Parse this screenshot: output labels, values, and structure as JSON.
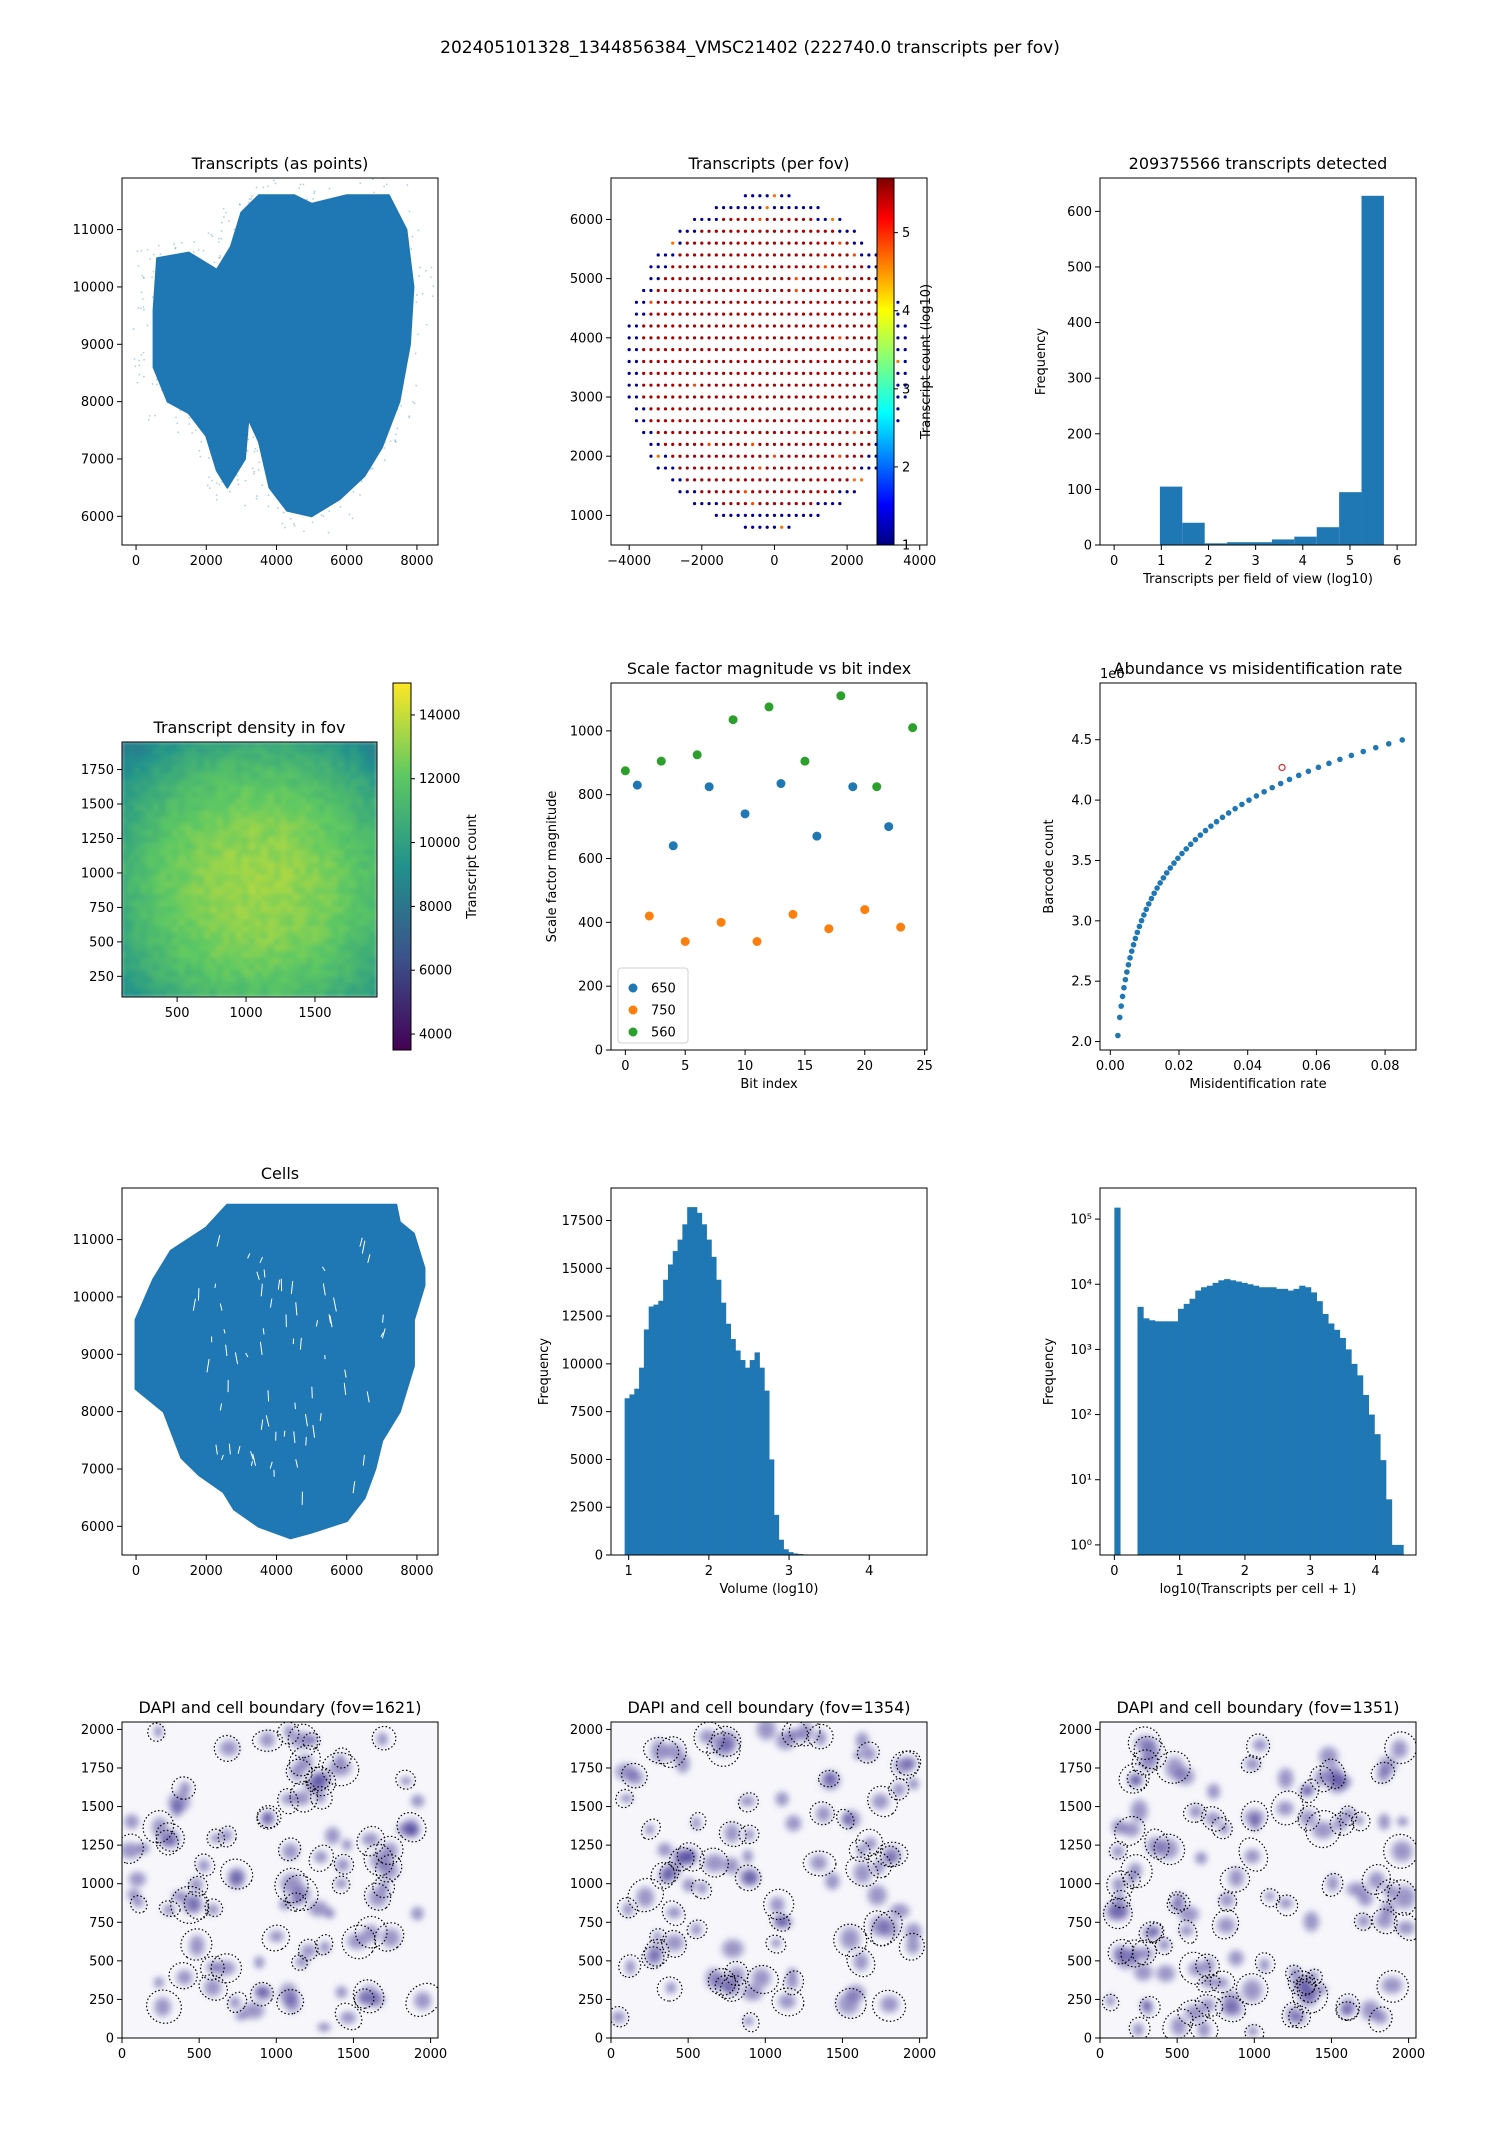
{
  "figure": {
    "title": "202405101328_1344856384_VMSC21402 (222740.0 transcripts per fov)"
  },
  "colors": {
    "tab_blue": "#1f77b4",
    "tab_orange": "#ff7f0e",
    "tab_green": "#2ca02c",
    "red_marker": "#d62728",
    "boundary": "#000000",
    "dapi": "#3b2f8f"
  },
  "chart_data": [
    {
      "id": "transcripts-points",
      "type": "scatter",
      "title": "Transcripts (as points)",
      "xlabel": "",
      "ylabel": "",
      "xlim": [
        -400,
        8600
      ],
      "ylim": [
        5500,
        11900
      ],
      "x_ticks": [
        0,
        2000,
        4000,
        6000,
        8000
      ],
      "y_ticks": [
        6000,
        7000,
        8000,
        9000,
        10000,
        11000
      ],
      "description": "dense point cloud forming tissue shape",
      "outline": [
        [
          600,
          10500
        ],
        [
          1500,
          10600
        ],
        [
          2300,
          10300
        ],
        [
          2700,
          10700
        ],
        [
          3000,
          11300
        ],
        [
          3500,
          11600
        ],
        [
          4500,
          11600
        ],
        [
          5000,
          11450
        ],
        [
          6000,
          11600
        ],
        [
          7200,
          11600
        ],
        [
          7700,
          11000
        ],
        [
          7900,
          10000
        ],
        [
          7800,
          9000
        ],
        [
          7500,
          8000
        ],
        [
          7000,
          7200
        ],
        [
          6500,
          6700
        ],
        [
          5800,
          6300
        ],
        [
          5000,
          6000
        ],
        [
          4300,
          6100
        ],
        [
          3800,
          6500
        ],
        [
          3500,
          7300
        ],
        [
          3200,
          7700
        ],
        [
          3100,
          7000
        ],
        [
          2600,
          6500
        ],
        [
          2300,
          6800
        ],
        [
          2000,
          7400
        ],
        [
          1500,
          7800
        ],
        [
          900,
          8000
        ],
        [
          500,
          8600
        ],
        [
          500,
          9600
        ]
      ]
    },
    {
      "id": "transcripts-per-fov",
      "type": "scatter",
      "title": "Transcripts (per fov)",
      "xlim": [
        -4500,
        4200
      ],
      "ylim": [
        500,
        6700
      ],
      "x_ticks": [
        -4000,
        -2000,
        0,
        2000,
        4000
      ],
      "y_ticks": [
        1000,
        2000,
        3000,
        4000,
        5000,
        6000
      ],
      "colorbar": {
        "label": "Transcript count (log10)",
        "range": [
          1,
          5.7
        ],
        "ticks": [
          1,
          2,
          3,
          4,
          5
        ],
        "colormap": "jet"
      },
      "grid": {
        "x_start": -4000,
        "x_end": 3700,
        "x_step": 200,
        "y_start": 800,
        "y_end": 6400,
        "y_step": 200
      },
      "value_rule": "outer ring ~1.1 (blue), interior ~5.5 (red), occasional ~4.8 (orange)"
    },
    {
      "id": "transcripts-hist",
      "type": "bar",
      "title": "209375566 transcripts detected",
      "xlabel": "Transcripts per field of view (log10)",
      "ylabel": "Frequency",
      "xlim": [
        -0.3,
        6.4
      ],
      "ylim": [
        0,
        660
      ],
      "x_ticks": [
        0,
        1,
        2,
        3,
        4,
        5,
        6
      ],
      "y_ticks": [
        0,
        100,
        200,
        300,
        400,
        500,
        600
      ],
      "bin_edges": [
        0.97,
        1.445,
        1.92,
        2.395,
        2.87,
        3.345,
        3.82,
        4.295,
        4.77,
        5.245,
        5.72
      ],
      "values": [
        105,
        40,
        3,
        5,
        5,
        10,
        15,
        32,
        95,
        628
      ]
    },
    {
      "id": "density-fov",
      "type": "heatmap",
      "title": "Transcript density in fov",
      "xlim": [
        100,
        1950
      ],
      "ylim": [
        100,
        1950
      ],
      "x_ticks": [
        500,
        1000,
        1500
      ],
      "y_ticks": [
        250,
        500,
        750,
        1000,
        1250,
        1500,
        1750
      ],
      "colorbar": {
        "label": "Transcript count",
        "range": [
          3500,
          15000
        ],
        "ticks": [
          4000,
          6000,
          8000,
          10000,
          12000,
          14000
        ],
        "colormap": "viridis"
      },
      "value_range": [
        10500,
        13800
      ]
    },
    {
      "id": "scale-factor",
      "type": "scatter",
      "title": "Scale factor magnitude vs bit index",
      "xlabel": "Bit index",
      "ylabel": "Scale factor magnitude",
      "xlim": [
        -1.2,
        25.2
      ],
      "ylim": [
        0,
        1150
      ],
      "x_ticks": [
        0,
        5,
        10,
        15,
        20,
        25
      ],
      "y_ticks": [
        0,
        200,
        400,
        600,
        800,
        1000
      ],
      "legend": "lower left",
      "series": [
        {
          "name": "650",
          "x": [
            1,
            4,
            7,
            10,
            13,
            16,
            19,
            22
          ],
          "y": [
            830,
            640,
            825,
            740,
            835,
            670,
            825,
            700
          ]
        },
        {
          "name": "750",
          "x": [
            2,
            5,
            8,
            11,
            14,
            17,
            20,
            23
          ],
          "y": [
            420,
            340,
            400,
            340,
            425,
            380,
            440,
            385
          ]
        },
        {
          "name": "560",
          "x": [
            0,
            3,
            6,
            9,
            12,
            15,
            18,
            21,
            24
          ],
          "y": [
            875,
            905,
            925,
            1035,
            1075,
            905,
            1110,
            825,
            1010
          ]
        }
      ]
    },
    {
      "id": "abundance-misid",
      "type": "scatter",
      "title": "Abundance vs misidentification rate",
      "xlabel": "Misidentification rate",
      "ylabel": "Barcode count",
      "y_multiplier": "1e6",
      "xlim": [
        -0.003,
        0.089
      ],
      "ylim": [
        1.93,
        4.97
      ],
      "x_ticks": [
        0.0,
        0.02,
        0.04,
        0.06,
        0.08
      ],
      "y_ticks": [
        2.0,
        2.5,
        3.0,
        3.5,
        4.0,
        4.5
      ],
      "x_tick_labels": [
        "0.00",
        "0.02",
        "0.04",
        "0.06",
        "0.08"
      ],
      "y_tick_labels": [
        "2.0",
        "2.5",
        "3.0",
        "3.5",
        "4.0",
        "4.5"
      ],
      "curve": "count = 2.05 + 0.67*ln(rate/0.0022)",
      "x_range": [
        0.0022,
        0.085
      ],
      "n_points": 55,
      "highlight": {
        "x": 0.05,
        "y": 4.27
      }
    },
    {
      "id": "cells",
      "type": "scatter",
      "title": "Cells",
      "xlim": [
        -400,
        8600
      ],
      "ylim": [
        5500,
        11900
      ],
      "x_ticks": [
        0,
        2000,
        4000,
        6000,
        8000
      ],
      "y_ticks": [
        6000,
        7000,
        8000,
        9000,
        10000,
        11000
      ],
      "outline": [
        [
          2600,
          11600
        ],
        [
          7400,
          11600
        ],
        [
          7500,
          11300
        ],
        [
          7900,
          11100
        ],
        [
          8200,
          10500
        ],
        [
          8200,
          10200
        ],
        [
          7900,
          9600
        ],
        [
          7900,
          8800
        ],
        [
          7500,
          8000
        ],
        [
          7000,
          7500
        ],
        [
          6800,
          7000
        ],
        [
          6500,
          6500
        ],
        [
          6000,
          6100
        ],
        [
          5000,
          5900
        ],
        [
          4400,
          5800
        ],
        [
          3500,
          6000
        ],
        [
          2800,
          6300
        ],
        [
          2500,
          6600
        ],
        [
          1800,
          6900
        ],
        [
          1300,
          7200
        ],
        [
          800,
          8000
        ],
        [
          0,
          8400
        ],
        [
          0,
          9600
        ],
        [
          500,
          10300
        ],
        [
          1000,
          10800
        ],
        [
          2000,
          11200
        ],
        [
          2300,
          11400
        ]
      ]
    },
    {
      "id": "volume-hist",
      "type": "bar",
      "xlabel": "Volume (log10)",
      "ylabel": "Frequency",
      "xlim": [
        0.78,
        4.72
      ],
      "ylim": [
        0,
        19200
      ],
      "x_ticks": [
        1,
        2,
        3,
        4
      ],
      "y_ticks": [
        0,
        2500,
        5000,
        7500,
        10000,
        12500,
        15000,
        17500
      ],
      "bin_start": 0.95,
      "bin_width": 0.06,
      "values": [
        8200,
        8400,
        8700,
        9800,
        11800,
        13000,
        13100,
        13300,
        14400,
        15200,
        15900,
        16500,
        17300,
        18200,
        18200,
        17900,
        17300,
        16500,
        15600,
        14400,
        13200,
        12100,
        11300,
        10700,
        10200,
        9800,
        10200,
        10600,
        9800,
        8600,
        5000,
        2100,
        800,
        300,
        150,
        80,
        50,
        30,
        20,
        10,
        5,
        5,
        3,
        2,
        1,
        1,
        1,
        1
      ]
    },
    {
      "id": "transcripts-per-cell-hist",
      "type": "bar",
      "xlabel": "log10(Transcripts per cell + 1)",
      "ylabel": "Frequency",
      "y_scale": "log",
      "xlim": [
        -0.22,
        4.62
      ],
      "ylim": [
        0.7,
        300000
      ],
      "x_ticks": [
        0,
        1,
        2,
        3,
        4
      ],
      "y_ticks": [
        1,
        10,
        100,
        1000,
        10000,
        100000
      ],
      "y_tick_labels": [
        "10⁰",
        "10¹",
        "10²",
        "10³",
        "10⁴",
        "10⁵"
      ],
      "bin_width": 0.0885,
      "bins": [
        [
          0.0,
          150000
        ],
        [
          0.354,
          4500
        ],
        [
          0.443,
          3000
        ],
        [
          0.531,
          2800
        ],
        [
          0.62,
          2700
        ],
        [
          0.708,
          2700
        ],
        [
          0.797,
          2700
        ],
        [
          0.885,
          2700
        ],
        [
          0.974,
          4200
        ],
        [
          1.062,
          5000
        ],
        [
          1.151,
          6000
        ],
        [
          1.239,
          8000
        ],
        [
          1.328,
          9000
        ],
        [
          1.416,
          9500
        ],
        [
          1.505,
          10500
        ],
        [
          1.593,
          11500
        ],
        [
          1.682,
          12000
        ],
        [
          1.77,
          11500
        ],
        [
          1.859,
          11000
        ],
        [
          1.947,
          10500
        ],
        [
          2.036,
          10000
        ],
        [
          2.124,
          9500
        ],
        [
          2.213,
          9000
        ],
        [
          2.301,
          9000
        ],
        [
          2.39,
          9000
        ],
        [
          2.478,
          8500
        ],
        [
          2.567,
          8500
        ],
        [
          2.655,
          8000
        ],
        [
          2.744,
          8500
        ],
        [
          2.832,
          9500
        ],
        [
          2.921,
          9000
        ],
        [
          3.009,
          7500
        ],
        [
          3.098,
          5500
        ],
        [
          3.186,
          3500
        ],
        [
          3.275,
          2500
        ],
        [
          3.363,
          2000
        ],
        [
          3.452,
          1500
        ],
        [
          3.54,
          1000
        ],
        [
          3.629,
          600
        ],
        [
          3.717,
          400
        ],
        [
          3.806,
          200
        ],
        [
          3.894,
          100
        ],
        [
          3.983,
          50
        ],
        [
          4.071,
          20
        ],
        [
          4.16,
          5
        ],
        [
          4.248,
          1
        ],
        [
          4.337,
          1
        ]
      ]
    },
    {
      "id": "dapi-1621",
      "type": "scatter",
      "title": "DAPI and cell boundary (fov=1621)",
      "xlim": [
        0,
        2048
      ],
      "ylim": [
        0,
        2048
      ],
      "x_ticks": [
        0,
        500,
        1000,
        1500,
        2000
      ],
      "y_ticks": [
        0,
        250,
        500,
        750,
        1000,
        1250,
        1500,
        1750,
        2000
      ],
      "seed": 1621,
      "n_cells": 95
    },
    {
      "id": "dapi-1354",
      "type": "scatter",
      "title": "DAPI and cell boundary (fov=1354)",
      "xlim": [
        0,
        2048
      ],
      "ylim": [
        0,
        2048
      ],
      "x_ticks": [
        0,
        500,
        1000,
        1500,
        2000
      ],
      "y_ticks": [
        0,
        250,
        500,
        750,
        1000,
        1250,
        1500,
        1750,
        2000
      ],
      "seed": 1354,
      "n_cells": 95
    },
    {
      "id": "dapi-1351",
      "type": "scatter",
      "title": "DAPI and cell boundary (fov=1351)",
      "xlim": [
        0,
        2048
      ],
      "ylim": [
        0,
        2048
      ],
      "x_ticks": [
        0,
        500,
        1000,
        1500,
        2000
      ],
      "y_ticks": [
        0,
        250,
        500,
        750,
        1000,
        1250,
        1500,
        1750,
        2000
      ],
      "seed": 1351,
      "n_cells": 110
    }
  ]
}
